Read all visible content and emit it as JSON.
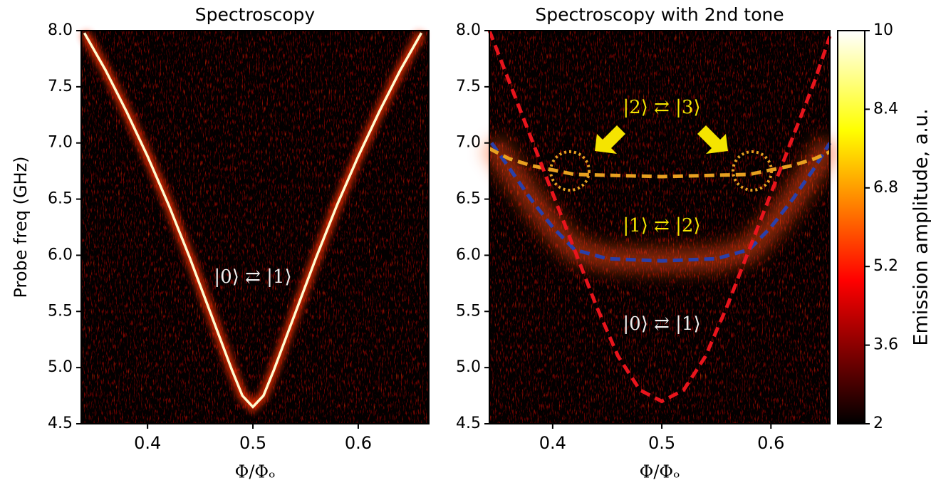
{
  "chart_data": [
    {
      "type": "heatmap",
      "title": "Spectroscopy",
      "x_label": "Φ/Φₒ",
      "y_label": "Probe freq (GHz)",
      "xlim": [
        0.337,
        0.667
      ],
      "ylim": [
        4.5,
        8.0
      ],
      "xticks": [
        0.4,
        0.5,
        0.6
      ],
      "yticks": [
        4.5,
        {
          "value": 5,
          "label": "5.0"
        },
        5.5,
        {
          "value": 6,
          "label": "6.0"
        },
        6.5,
        {
          "value": 7,
          "label": "7.0"
        },
        7.5,
        {
          "value": 8,
          "label": "8.0"
        }
      ],
      "series": [
        {
          "color": "#fffbd0",
          "style": "solid",
          "x": [
            0.34,
            0.36,
            0.38,
            0.4,
            0.42,
            0.44,
            0.46,
            0.48,
            0.49,
            0.5,
            0.51,
            0.52,
            0.54,
            0.56,
            0.58,
            0.6,
            0.62,
            0.64,
            0.66
          ],
          "values": [
            7.98,
            7.65,
            7.28,
            6.88,
            6.45,
            5.98,
            5.48,
            4.98,
            4.75,
            4.65,
            4.75,
            4.98,
            5.48,
            5.98,
            6.45,
            6.88,
            7.28,
            7.65,
            7.98
          ]
        }
      ],
      "annotations": [
        "|0⟩ ⇄ |1⟩"
      ]
    },
    {
      "type": "heatmap",
      "title": "Spectroscopy with 2nd tone",
      "x_label": "Φ/Φₒ",
      "xlim": [
        0.342,
        0.654
      ],
      "ylim": [
        4.5,
        8.0
      ],
      "xticks": [
        0.4,
        0.5,
        0.6
      ],
      "yticks": [
        4.5,
        {
          "value": 5,
          "label": "5.0"
        },
        5.5,
        {
          "value": 6,
          "label": "6.0"
        },
        6.5,
        {
          "value": 7,
          "label": "7.0"
        },
        7.5,
        {
          "value": 8,
          "label": "8.0"
        }
      ],
      "series": [
        {
          "color": "#2a3fa8",
          "style": "dashed",
          "glow": true,
          "x": [
            0.344,
            0.36,
            0.38,
            0.4,
            0.42,
            0.45,
            0.5,
            0.55,
            0.58,
            0.6,
            0.62,
            0.64,
            0.654
          ],
          "values": [
            7.0,
            6.78,
            6.5,
            6.25,
            6.05,
            5.97,
            5.95,
            5.97,
            6.05,
            6.25,
            6.5,
            6.78,
            7.0
          ]
        },
        {
          "color": "#e8a020",
          "style": "dashed",
          "x": [
            0.342,
            0.36,
            0.38,
            0.42,
            0.5,
            0.58,
            0.62,
            0.64,
            0.654
          ],
          "values": [
            6.95,
            6.86,
            6.8,
            6.72,
            6.7,
            6.72,
            6.8,
            6.86,
            6.92
          ]
        },
        {
          "color": "#e8141c",
          "style": "dashed",
          "x": [
            0.342,
            0.36,
            0.38,
            0.4,
            0.42,
            0.44,
            0.46,
            0.48,
            0.5,
            0.52,
            0.54,
            0.56,
            0.58,
            0.6,
            0.62,
            0.64,
            0.654
          ],
          "values": [
            8.0,
            7.55,
            7.05,
            6.55,
            6.05,
            5.55,
            5.1,
            4.8,
            4.7,
            4.8,
            5.1,
            5.55,
            6.05,
            6.55,
            7.05,
            7.55,
            7.95
          ]
        }
      ],
      "annotations": [
        "|2⟩ ⇄ |3⟩",
        "|1⟩ ⇄ |2⟩",
        "|0⟩ ⇄ |1⟩"
      ],
      "colorbar": {
        "label": "Emission amplitude, a.u.",
        "colormap": "hot",
        "lim": [
          2,
          10
        ],
        "ticks": [
          2,
          3.6,
          5.2,
          6.8,
          8.4,
          10
        ]
      }
    }
  ]
}
